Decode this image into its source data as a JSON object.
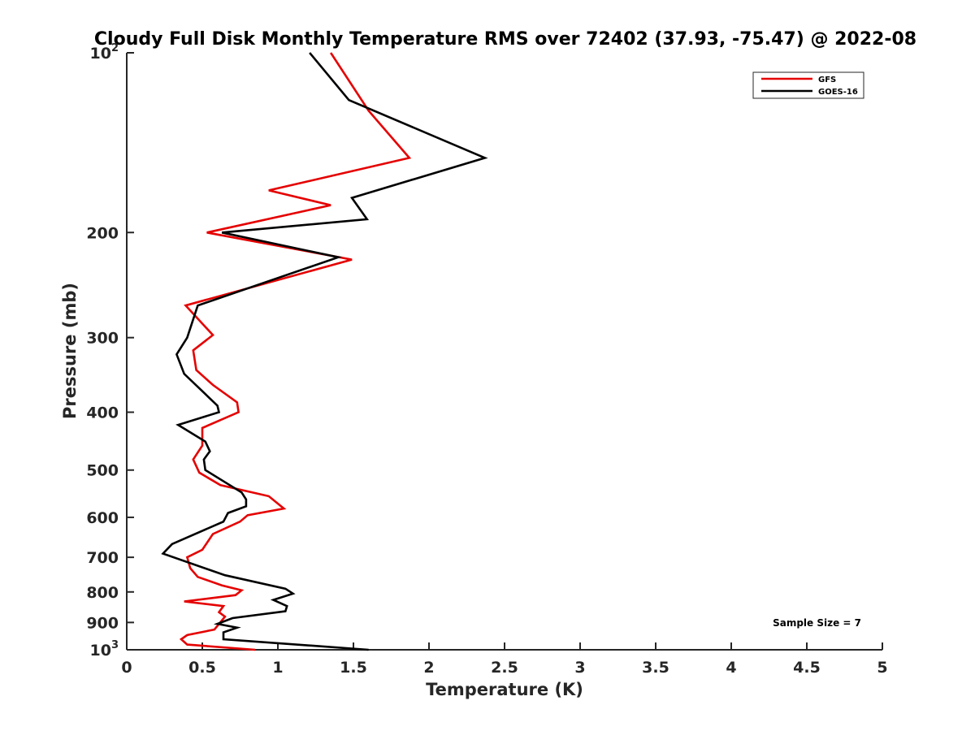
{
  "chart_data": {
    "type": "line",
    "title": "Cloudy Full Disk Monthly Temperature RMS over 72402 (37.93, -75.47) @ 2022-08",
    "xlabel": "Temperature (K)",
    "ylabel": "Pressure (mb)",
    "xlim": [
      0,
      5
    ],
    "ylim": [
      1000,
      100
    ],
    "yscale": "log",
    "yreverse": true,
    "x_ticks": [
      0,
      0.5,
      1,
      1.5,
      2,
      2.5,
      3,
      3.5,
      4,
      4.5,
      5
    ],
    "x_tick_labels": [
      "0",
      "0.5",
      "1",
      "1.5",
      "2",
      "2.5",
      "3",
      "3.5",
      "4",
      "4.5",
      "5"
    ],
    "y_ticks": [
      100,
      200,
      300,
      400,
      500,
      600,
      700,
      800,
      900,
      1000
    ],
    "y_tick_labels": [
      {
        "base": "10",
        "exp": "2"
      },
      {
        "base": "200",
        "exp": ""
      },
      {
        "base": "300",
        "exp": ""
      },
      {
        "base": "400",
        "exp": ""
      },
      {
        "base": "500",
        "exp": ""
      },
      {
        "base": "600",
        "exp": ""
      },
      {
        "base": "700",
        "exp": ""
      },
      {
        "base": "800",
        "exp": ""
      },
      {
        "base": "900",
        "exp": ""
      },
      {
        "base": "10",
        "exp": "3"
      }
    ],
    "grid": false,
    "legend_position": "top-right",
    "annotation": "Sample Size = 7",
    "series": [
      {
        "name": "GFS",
        "color": "#e50000",
        "points": [
          [
            1.35,
            100
          ],
          [
            1.6,
            125
          ],
          [
            1.87,
            150
          ],
          [
            0.94,
            170
          ],
          [
            1.35,
            180
          ],
          [
            0.53,
            200
          ],
          [
            1.49,
            222
          ],
          [
            0.39,
            265
          ],
          [
            0.57,
            297
          ],
          [
            0.44,
            315
          ],
          [
            0.46,
            340
          ],
          [
            0.57,
            360
          ],
          [
            0.73,
            385
          ],
          [
            0.74,
            400
          ],
          [
            0.5,
            425
          ],
          [
            0.5,
            455
          ],
          [
            0.44,
            480
          ],
          [
            0.48,
            505
          ],
          [
            0.62,
            530
          ],
          [
            0.94,
            553
          ],
          [
            1.04,
            580
          ],
          [
            0.8,
            595
          ],
          [
            0.75,
            610
          ],
          [
            0.57,
            640
          ],
          [
            0.5,
            680
          ],
          [
            0.4,
            700
          ],
          [
            0.42,
            730
          ],
          [
            0.47,
            755
          ],
          [
            0.63,
            780
          ],
          [
            0.76,
            795
          ],
          [
            0.72,
            810
          ],
          [
            0.38,
            830
          ],
          [
            0.64,
            845
          ],
          [
            0.61,
            865
          ],
          [
            0.65,
            880
          ],
          [
            0.58,
            925
          ],
          [
            0.4,
            945
          ],
          [
            0.36,
            960
          ],
          [
            0.4,
            980
          ],
          [
            0.85,
            1000
          ]
        ]
      },
      {
        "name": "GOES-16",
        "color": "#000000",
        "points": [
          [
            1.21,
            100
          ],
          [
            1.47,
            120
          ],
          [
            2.37,
            150
          ],
          [
            1.49,
            175
          ],
          [
            1.59,
            190
          ],
          [
            0.63,
            200
          ],
          [
            1.4,
            220
          ],
          [
            0.47,
            265
          ],
          [
            0.4,
            300
          ],
          [
            0.33,
            320
          ],
          [
            0.38,
            345
          ],
          [
            0.6,
            390
          ],
          [
            0.61,
            400
          ],
          [
            0.34,
            420
          ],
          [
            0.52,
            448
          ],
          [
            0.55,
            465
          ],
          [
            0.51,
            480
          ],
          [
            0.52,
            500
          ],
          [
            0.76,
            545
          ],
          [
            0.79,
            560
          ],
          [
            0.79,
            575
          ],
          [
            0.67,
            590
          ],
          [
            0.64,
            610
          ],
          [
            0.3,
            665
          ],
          [
            0.24,
            690
          ],
          [
            0.65,
            750
          ],
          [
            1.05,
            790
          ],
          [
            1.1,
            805
          ],
          [
            0.97,
            825
          ],
          [
            1.06,
            845
          ],
          [
            1.05,
            862
          ],
          [
            0.7,
            885
          ],
          [
            0.6,
            905
          ],
          [
            0.73,
            918
          ],
          [
            0.64,
            935
          ],
          [
            0.64,
            960
          ],
          [
            1.6,
            1000
          ]
        ]
      }
    ]
  }
}
